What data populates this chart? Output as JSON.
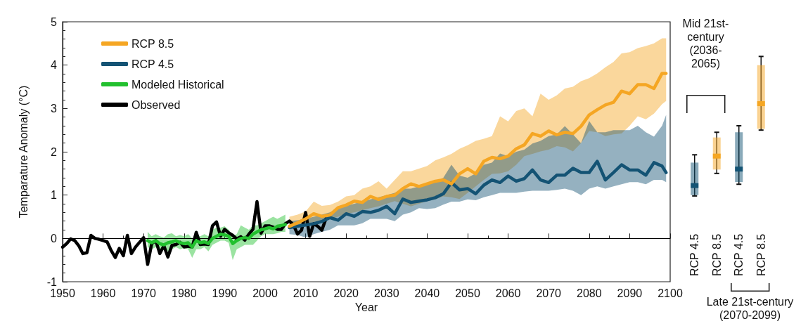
{
  "chart_data": [
    {
      "type": "line",
      "xlabel": "Year",
      "ylabel": "Temparature Anomaly (°C)",
      "legend": "top left",
      "xlim": [
        1950,
        2100
      ],
      "xticks": [
        1950,
        1960,
        1970,
        1980,
        1990,
        2000,
        2010,
        2020,
        2030,
        2040,
        2050,
        2060,
        2070,
        2080,
        2090,
        2100
      ],
      "ylim": [
        -1,
        5
      ],
      "yticks": [
        -1,
        0,
        1,
        2,
        3,
        4,
        5
      ],
      "ref_lines": [
        {
          "axis": "y",
          "value": 0,
          "color": "#000000"
        }
      ],
      "series": [
        {
          "name": "RCP 8.5",
          "color": "#f5a623",
          "x": [
            2006,
            2008,
            2010,
            2012,
            2014,
            2016,
            2018,
            2020,
            2022,
            2024,
            2026,
            2028,
            2030,
            2032,
            2034,
            2036,
            2038,
            2040,
            2042,
            2044,
            2046,
            2048,
            2050,
            2052,
            2054,
            2056,
            2058,
            2060,
            2062,
            2064,
            2066,
            2068,
            2070,
            2072,
            2074,
            2076,
            2078,
            2080,
            2082,
            2084,
            2086,
            2088,
            2090,
            2092,
            2094,
            2096,
            2098,
            2099
          ],
          "values": [
            0.28,
            0.36,
            0.45,
            0.57,
            0.51,
            0.54,
            0.71,
            0.77,
            0.86,
            0.83,
            0.97,
            0.9,
            0.97,
            1.0,
            1.15,
            1.26,
            1.2,
            1.26,
            1.32,
            1.35,
            1.26,
            1.49,
            1.61,
            1.49,
            1.78,
            1.87,
            1.84,
            1.9,
            2.07,
            2.16,
            2.42,
            2.36,
            2.48,
            2.39,
            2.45,
            2.42,
            2.59,
            2.85,
            2.97,
            3.08,
            3.14,
            3.4,
            3.34,
            3.55,
            3.55,
            3.46,
            3.81,
            3.81
          ],
          "upper": [
            0.5,
            0.55,
            0.62,
            0.85,
            0.75,
            0.77,
            0.85,
            0.97,
            1.0,
            1.15,
            1.2,
            1.32,
            1.15,
            1.35,
            1.55,
            1.55,
            1.61,
            1.67,
            1.8,
            1.87,
            1.95,
            2.07,
            2.15,
            2.25,
            2.3,
            2.36,
            2.82,
            2.7,
            2.94,
            3.0,
            2.82,
            3.34,
            3.2,
            3.3,
            3.46,
            3.5,
            3.63,
            3.7,
            3.81,
            3.95,
            4.07,
            4.27,
            4.3,
            4.39,
            4.44,
            4.5,
            4.62,
            4.62
          ],
          "lower": [
            0.25,
            0.3,
            0.34,
            0.38,
            0.42,
            0.45,
            0.5,
            0.57,
            0.6,
            0.65,
            0.7,
            0.74,
            0.8,
            0.86,
            0.8,
            0.74,
            0.8,
            0.86,
            0.9,
            0.97,
            0.95,
            0.91,
            1.05,
            1.2,
            1.35,
            1.49,
            1.5,
            1.55,
            1.7,
            1.9,
            1.95,
            2.01,
            2.05,
            2.13,
            2.1,
            2.01,
            2.2,
            2.48,
            2.45,
            2.36,
            2.4,
            2.42,
            2.6,
            2.82,
            2.75,
            2.88,
            3.1,
            3.17
          ]
        },
        {
          "name": "RCP 4.5",
          "color": "#145374",
          "x": [
            2006,
            2008,
            2010,
            2012,
            2014,
            2016,
            2018,
            2020,
            2022,
            2024,
            2026,
            2028,
            2030,
            2032,
            2034,
            2036,
            2038,
            2040,
            2042,
            2044,
            2046,
            2048,
            2050,
            2052,
            2054,
            2056,
            2058,
            2060,
            2062,
            2064,
            2066,
            2068,
            2070,
            2072,
            2074,
            2076,
            2078,
            2080,
            2082,
            2084,
            2086,
            2088,
            2090,
            2092,
            2094,
            2096,
            2098,
            2099
          ],
          "values": [
            0.25,
            0.28,
            0.31,
            0.34,
            0.39,
            0.48,
            0.42,
            0.57,
            0.51,
            0.62,
            0.6,
            0.65,
            0.74,
            0.57,
            0.91,
            0.83,
            0.86,
            0.89,
            0.94,
            1.03,
            1.29,
            1.12,
            1.15,
            1.03,
            1.23,
            1.35,
            1.29,
            1.44,
            1.32,
            1.38,
            1.58,
            1.35,
            1.29,
            1.46,
            1.46,
            1.62,
            1.52,
            1.52,
            1.78,
            1.35,
            1.52,
            1.7,
            1.58,
            1.58,
            1.46,
            1.75,
            1.67,
            1.52
          ],
          "upper": [
            0.4,
            0.42,
            0.45,
            0.5,
            0.55,
            0.6,
            0.7,
            0.75,
            0.8,
            0.85,
            0.9,
            0.95,
            1.0,
            1.05,
            1.15,
            1.15,
            1.2,
            1.25,
            1.3,
            1.4,
            1.7,
            1.45,
            1.4,
            1.5,
            1.7,
            1.75,
            1.96,
            1.9,
            2.0,
            2.05,
            2.19,
            2.25,
            2.36,
            2.4,
            2.59,
            2.4,
            2.2,
            2.71,
            2.45,
            2.45,
            2.5,
            2.5,
            2.5,
            2.6,
            2.45,
            2.35,
            2.6,
            2.85
          ],
          "lower": [
            0.1,
            0.08,
            0.02,
            0.1,
            0.15,
            0.2,
            0.3,
            0.3,
            0.3,
            0.35,
            0.45,
            0.45,
            0.45,
            0.4,
            0.55,
            0.6,
            0.7,
            0.68,
            0.7,
            0.78,
            0.85,
            0.85,
            0.9,
            0.88,
            0.95,
            1.0,
            1.05,
            1.05,
            1.05,
            1.08,
            1.1,
            1.1,
            1.1,
            1.12,
            1.15,
            1.1,
            1.0,
            1.15,
            1.2,
            1.15,
            1.2,
            1.25,
            1.3,
            1.3,
            1.25,
            1.35,
            1.35,
            1.3
          ]
        },
        {
          "name": "Modeled Historical",
          "color": "#22c02e",
          "x": [
            1971,
            1972,
            1973,
            1974,
            1975,
            1976,
            1977,
            1978,
            1979,
            1980,
            1981,
            1982,
            1983,
            1984,
            1985,
            1986,
            1987,
            1988,
            1989,
            1990,
            1991,
            1992,
            1993,
            1994,
            1995,
            1996,
            1997,
            1998,
            1999,
            2000,
            2001,
            2002,
            2003,
            2004,
            2005
          ],
          "values": [
            -0.05,
            -0.1,
            -0.05,
            -0.12,
            -0.15,
            -0.1,
            -0.08,
            -0.05,
            -0.1,
            -0.12,
            -0.1,
            -0.2,
            -0.05,
            -0.1,
            -0.08,
            -0.12,
            0.0,
            0.05,
            0.1,
            0.08,
            0.05,
            -0.12,
            -0.05,
            0.0,
            0.02,
            0.0,
            0.1,
            0.15,
            0.2,
            0.22,
            0.25,
            0.22,
            0.28,
            0.3,
            0.32
          ],
          "upper": [
            0.15,
            0.05,
            0.1,
            0.05,
            0.02,
            0.1,
            0.12,
            0.05,
            0.08,
            0.05,
            0.1,
            0.0,
            0.05,
            0.05,
            0.1,
            0.05,
            0.2,
            0.25,
            0.25,
            0.28,
            0.2,
            0.05,
            0.1,
            0.3,
            0.25,
            0.2,
            0.3,
            0.3,
            0.35,
            0.4,
            0.45,
            0.5,
            0.45,
            0.5,
            0.55
          ],
          "lower": [
            -0.2,
            -0.25,
            -0.2,
            -0.3,
            -0.25,
            -0.3,
            -0.25,
            -0.2,
            -0.25,
            -0.22,
            -0.25,
            -0.45,
            -0.25,
            -0.25,
            -0.2,
            -0.3,
            -0.15,
            -0.1,
            -0.05,
            -0.05,
            -0.1,
            -0.5,
            -0.25,
            -0.2,
            -0.15,
            -0.15,
            -0.15,
            -0.05,
            0.05,
            0.1,
            0.1,
            0.1,
            0.12,
            0.15,
            0.15
          ]
        },
        {
          "name": "Observed",
          "color": "#000000",
          "x": [
            1950,
            1951,
            1952,
            1953,
            1954,
            1955,
            1956,
            1957,
            1958,
            1959,
            1960,
            1961,
            1962,
            1963,
            1964,
            1965,
            1966,
            1967,
            1968,
            1969,
            1970,
            1971,
            1972,
            1973,
            1974,
            1975,
            1976,
            1977,
            1978,
            1979,
            1980,
            1981,
            1982,
            1983,
            1984,
            1985,
            1986,
            1987,
            1988,
            1989,
            1990,
            1991,
            1992,
            1993,
            1994,
            1995,
            1996,
            1997,
            1998,
            1999,
            2000,
            2001,
            2002,
            2003,
            2004,
            2005,
            2006,
            2007,
            2008,
            2009,
            2010,
            2011,
            2012,
            2013,
            2014,
            2015
          ],
          "values": [
            -0.2,
            -0.12,
            -0.01,
            -0.05,
            -0.17,
            -0.35,
            -0.33,
            0.07,
            0.0,
            -0.02,
            -0.05,
            -0.08,
            -0.28,
            -0.44,
            -0.23,
            -0.4,
            0.07,
            -0.35,
            -0.2,
            -0.09,
            0.02,
            -0.6,
            -0.12,
            -0.05,
            -0.35,
            -0.17,
            -0.43,
            -0.16,
            -0.14,
            -0.09,
            -0.2,
            -0.18,
            -0.2,
            0.14,
            -0.14,
            -0.13,
            -0.14,
            0.29,
            0.38,
            0.05,
            0.21,
            0.13,
            0.07,
            -0.01,
            0.04,
            -0.04,
            0.1,
            0.21,
            0.85,
            0.12,
            0.29,
            0.29,
            0.26,
            0.21,
            0.21,
            0.34,
            0.4,
            0.31,
            0.1,
            0.19,
            0.6,
            0.05,
            0.34,
            0.28,
            0.19,
            0.45
          ]
        }
      ]
    },
    {
      "type": "box",
      "categories": [
        "RCP 4.5",
        "RCP 8.5",
        "RCP 4.5",
        "RCP 8.5"
      ],
      "ylim": [
        -1,
        5
      ],
      "tick_labels": "x",
      "colors": [
        "#145374",
        "#f5a623",
        "#145374",
        "#f5a623"
      ],
      "boxes": [
        {
          "low": 0.98,
          "q1": 1.0,
          "median": 1.22,
          "q3": 1.75,
          "high": 1.93
        },
        {
          "low": 1.5,
          "q1": 1.59,
          "median": 1.9,
          "q3": 2.33,
          "high": 2.45
        },
        {
          "low": 1.25,
          "q1": 1.3,
          "median": 1.6,
          "q3": 2.45,
          "high": 2.6
        },
        {
          "low": 2.5,
          "q1": 2.53,
          "median": 3.11,
          "q3": 4.0,
          "high": 4.2
        }
      ],
      "annotations": [
        "Mid 21st-century (2036-2065)",
        "Late 21st-century (2070-2099)"
      ]
    }
  ]
}
